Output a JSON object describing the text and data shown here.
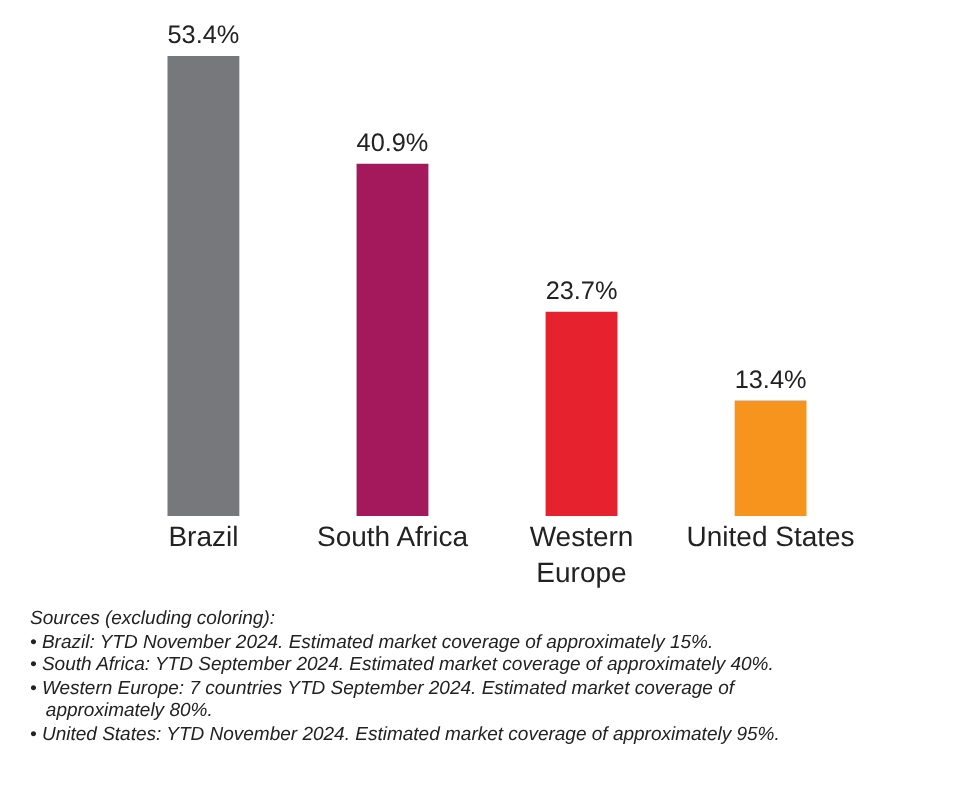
{
  "chart_data": {
    "type": "bar",
    "categories": [
      "Brazil",
      "South Africa",
      "Western Europe",
      "United States"
    ],
    "values": [
      53.4,
      40.9,
      23.7,
      13.4
    ],
    "colors": [
      "#77787b",
      "#a3195b",
      "#e6222e",
      "#f7941d"
    ],
    "value_labels": [
      "53.4%",
      "40.9%",
      "23.7%",
      "13.4%"
    ],
    "annotations": [
      "Sources (excluding coloring):",
      "• Brazil: YTD November 2024. Estimated market coverage of approximately 15%.",
      "• South Africa: YTD September 2024. Estimated market coverage of approximately 40%.",
      "• Western Europe: 7 countries YTD September 2024. Estimated market coverage of approximately 80%.",
      "• United States: YTD November 2024. Estimated market coverage of approximately 95%."
    ]
  }
}
